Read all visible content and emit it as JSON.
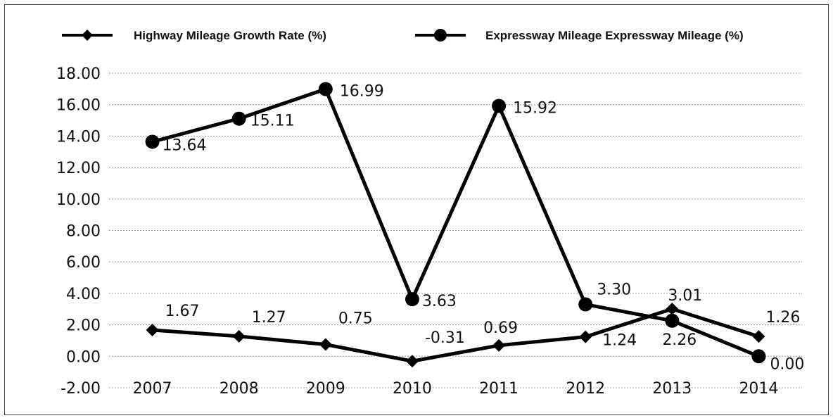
{
  "chart_data": {
    "type": "line",
    "categories": [
      "2007",
      "2008",
      "2009",
      "2010",
      "2011",
      "2012",
      "2013",
      "2014"
    ],
    "series": [
      {
        "name": "Highway Mileage Growth Rate (%)",
        "marker": "diamond",
        "values": [
          1.67,
          1.27,
          0.75,
          -0.31,
          0.69,
          1.24,
          3.01,
          1.26
        ],
        "labels": [
          "1.67",
          "1.27",
          "0.75",
          "-0.31",
          "0.69",
          "1.24",
          "3.01",
          "1.26"
        ]
      },
      {
        "name": "Expressway Mileage Expressway Mileage (%)",
        "marker": "circle",
        "values": [
          13.64,
          15.11,
          16.99,
          3.63,
          15.92,
          3.3,
          2.26,
          0.0
        ],
        "labels": [
          "13.64",
          "15.11",
          "16.99",
          "3.63",
          "15.92",
          "3.30",
          "2.26",
          "0.00"
        ]
      }
    ],
    "yticks": [
      "18.00",
      "16.00",
      "14.00",
      "12.00",
      "10.00",
      "8.00",
      "6.00",
      "4.00",
      "2.00",
      "0.00",
      "-2.00"
    ],
    "ylim": [
      -2,
      18
    ],
    "grid": true,
    "legend_position": "top",
    "line_color": "#000000"
  }
}
